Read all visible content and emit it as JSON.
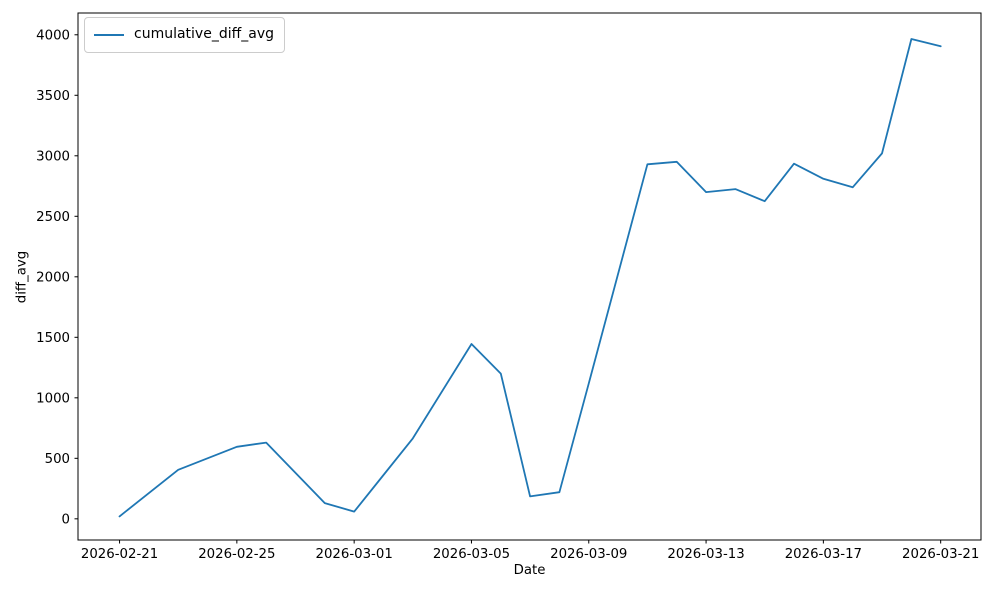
{
  "figure": {
    "background": "#ffffff"
  },
  "chart_data": {
    "type": "line",
    "title": "",
    "xlabel": "Date",
    "ylabel": "diff_avg",
    "grid": false,
    "legend": {
      "position": "upper left",
      "entries": [
        "cumulative_diff_avg"
      ]
    },
    "line_color": "#1f77b4",
    "axis_color": "#000000",
    "x_ticks": [
      "2026-02-21",
      "2026-02-25",
      "2026-03-01",
      "2026-03-05",
      "2026-03-09",
      "2026-03-13",
      "2026-03-17",
      "2026-03-21"
    ],
    "y_ticks": [
      0,
      500,
      1000,
      1500,
      2000,
      2500,
      3000,
      3500,
      4000
    ],
    "xlim": [
      "2026-02-19T14:00:00Z",
      "2026-03-22T09:00:00Z"
    ],
    "ylim": [
      -175,
      4180
    ],
    "series": [
      {
        "name": "cumulative_diff_avg",
        "color": "#1f77b4",
        "x": [
          "2026-02-21",
          "2026-02-23",
          "2026-02-25",
          "2026-02-26",
          "2026-02-28",
          "2026-03-01",
          "2026-03-03",
          "2026-03-05",
          "2026-03-06",
          "2026-03-07",
          "2026-03-08",
          "2026-03-09",
          "2026-03-11",
          "2026-03-12",
          "2026-03-13",
          "2026-03-14",
          "2026-03-15",
          "2026-03-16",
          "2026-03-17",
          "2026-03-18",
          "2026-03-19",
          "2026-03-20",
          "2026-03-21"
        ],
        "values": [
          20,
          405,
          595,
          630,
          130,
          60,
          665,
          1445,
          1200,
          185,
          220,
          1120,
          2930,
          2950,
          2700,
          2725,
          2625,
          2935,
          2810,
          2740,
          3020,
          3965,
          3905
        ]
      }
    ]
  }
}
